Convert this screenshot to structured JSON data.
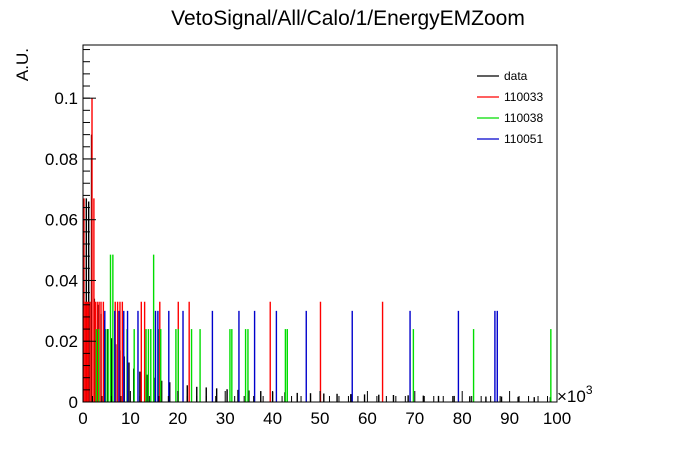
{
  "chart_data": {
    "type": "bar",
    "title": "VetoSignal/All/Calo/1/EnergyEMZoom",
    "xlabel": "",
    "ylabel": "A.U.",
    "x_range": [
      0,
      100000
    ],
    "y_range": [
      0,
      0.1175
    ],
    "x_ticks": [
      "0",
      "10",
      "20",
      "30",
      "40",
      "50",
      "60",
      "70",
      "80",
      "90",
      "100"
    ],
    "x_multiplier": "×10",
    "x_multiplier_exp": "3",
    "y_ticks": [
      "0",
      "0.02",
      "0.04",
      "0.06",
      "0.08",
      "0.1"
    ],
    "legend_position": "top-right",
    "legend": [
      {
        "label": "data",
        "color": "#000000"
      },
      {
        "label": "110033",
        "color": "#ff0000"
      },
      {
        "label": "110038",
        "color": "#00dd00"
      },
      {
        "label": "110051",
        "color": "#0000cc"
      }
    ],
    "series": [
      {
        "name": "data",
        "color": "#000000",
        "x": [
          200,
          700,
          1200,
          1800,
          2400,
          3100,
          3800,
          4500,
          5200,
          6000,
          6900,
          7800,
          8700,
          9700,
          10700,
          12000,
          13500,
          15000,
          16600,
          18300,
          20100,
          22000,
          24000,
          26000,
          28200,
          30400,
          32700,
          35000,
          37500,
          40000,
          42600,
          45200,
          48000,
          50800,
          53600,
          56500,
          59400,
          62400,
          65500,
          68600,
          71800,
          75000,
          78300,
          81600,
          85000,
          88300,
          91800,
          95200,
          98600
        ],
        "y": [
          0.032,
          0.067,
          0.066,
          0.088,
          0.034,
          0.032,
          0.029,
          0.027,
          0.024,
          0.021,
          0.019,
          0.017,
          0.015,
          0.013,
          0.011,
          0.01,
          0.009,
          0.008,
          0.007,
          0.0065,
          0.006,
          0.0055,
          0.005,
          0.0048,
          0.0045,
          0.0042,
          0.004,
          0.0038,
          0.0036,
          0.0034,
          0.0032,
          0.003,
          0.0029,
          0.0028,
          0.0027,
          0.0026,
          0.0025,
          0.0024,
          0.0023,
          0.0022,
          0.0021,
          0.002,
          0.002,
          0.0019,
          0.0018,
          0.0018,
          0.0017,
          0.0016,
          0.0016
        ]
      },
      {
        "name": "110033",
        "color": "#ff0000",
        "x": [
          200,
          500,
          800,
          1100,
          1500,
          1900,
          2300,
          2600,
          3000,
          3400,
          3800,
          4300,
          6800,
          7300,
          7800,
          8300,
          12300,
          13000,
          16200,
          20100,
          22400,
          39500,
          50100,
          63200
        ],
        "y": [
          0.067,
          0.033,
          0.033,
          0.033,
          0.033,
          0.1,
          0.067,
          0.033,
          0.033,
          0.033,
          0.033,
          0.033,
          0.033,
          0.033,
          0.033,
          0.033,
          0.033,
          0.033,
          0.033,
          0.033,
          0.033,
          0.033,
          0.033,
          0.033
        ]
      },
      {
        "name": "110038",
        "color": "#00dd00",
        "x": [
          2800,
          3300,
          4800,
          5300,
          5800,
          6300,
          9300,
          10800,
          13300,
          13800,
          14300,
          14900,
          15900,
          16400,
          19600,
          20100,
          22900,
          24700,
          31000,
          31400,
          34300,
          34800,
          42700,
          43100,
          69700,
          82400,
          98700
        ],
        "y": [
          0.024,
          0.024,
          0.024,
          0.024,
          0.0485,
          0.0485,
          0.024,
          0.024,
          0.024,
          0.024,
          0.024,
          0.0485,
          0.024,
          0.024,
          0.024,
          0.024,
          0.024,
          0.024,
          0.024,
          0.024,
          0.024,
          0.024,
          0.024,
          0.024,
          0.024,
          0.024,
          0.024
        ]
      },
      {
        "name": "110051",
        "color": "#0000cc",
        "x": [
          4600,
          6700,
          7600,
          8600,
          9400,
          11600,
          15300,
          15800,
          18100,
          21100,
          27300,
          32900,
          36200,
          40800,
          47100,
          56800,
          69000,
          79200,
          86900,
          87400
        ],
        "y": [
          0.03,
          0.03,
          0.03,
          0.03,
          0.03,
          0.03,
          0.03,
          0.03,
          0.03,
          0.03,
          0.03,
          0.03,
          0.03,
          0.03,
          0.03,
          0.03,
          0.03,
          0.03,
          0.03,
          0.03
        ]
      }
    ]
  }
}
